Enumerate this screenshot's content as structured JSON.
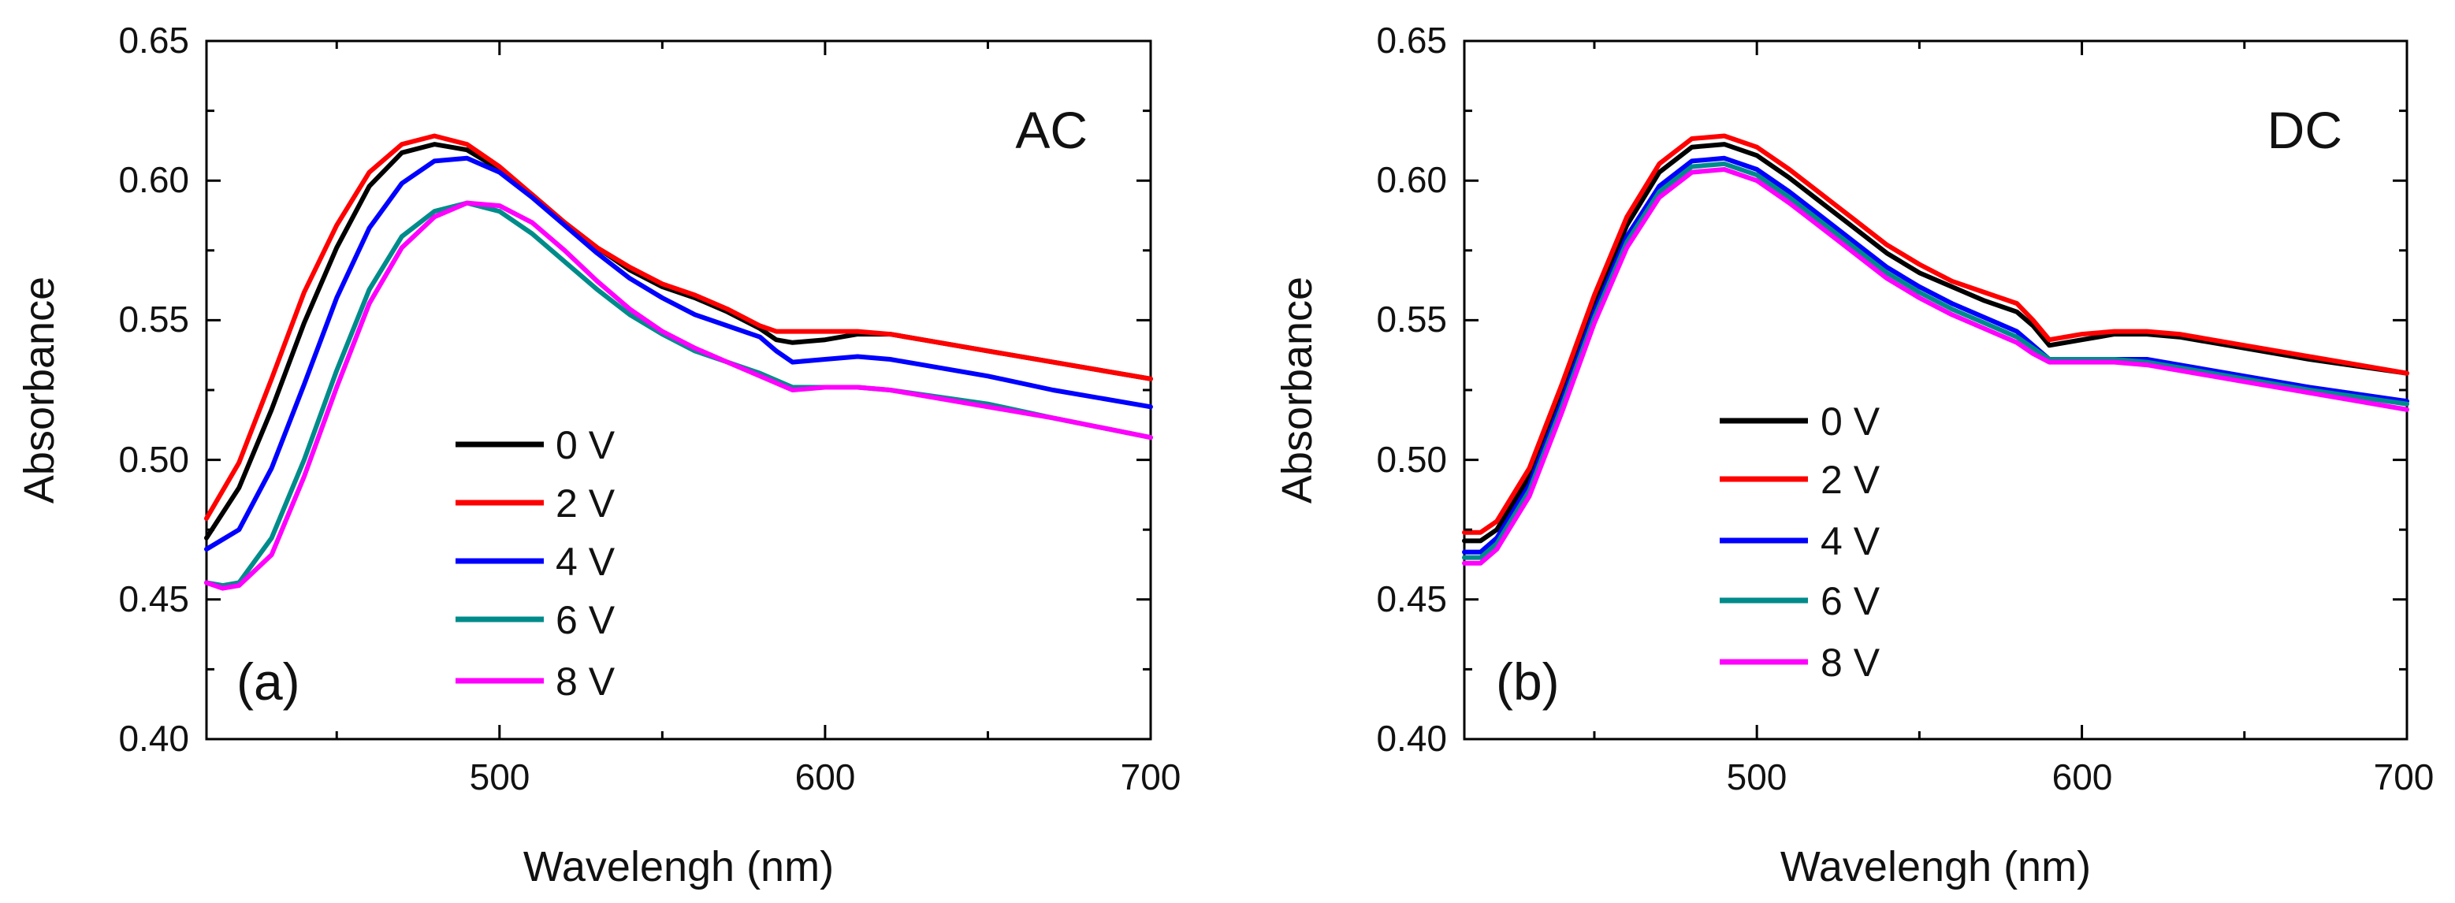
{
  "chart_data": [
    {
      "type": "line",
      "panel_label": "(a)",
      "title": "AC",
      "xlabel": "Wavelengh (nm)",
      "ylabel": "Absorbance",
      "xlim": [
        410,
        700
      ],
      "ylim": [
        0.4,
        0.65
      ],
      "xticks": [
        500,
        600,
        700
      ],
      "yticks": [
        0.4,
        0.45,
        0.5,
        0.55,
        0.6,
        0.65
      ],
      "ytick_labels": [
        "0.40",
        "0.45",
        "0.50",
        "0.55",
        "0.60",
        "0.65"
      ],
      "legend_position": "lower-center",
      "series": [
        {
          "name": "0 V",
          "color": "#000000",
          "x": [
            410,
            420,
            430,
            440,
            450,
            460,
            470,
            480,
            490,
            500,
            510,
            520,
            530,
            540,
            550,
            560,
            570,
            580,
            585,
            590,
            600,
            610,
            620,
            630,
            650,
            670,
            700
          ],
          "y": [
            0.472,
            0.49,
            0.518,
            0.549,
            0.576,
            0.598,
            0.61,
            0.613,
            0.611,
            0.604,
            0.595,
            0.585,
            0.576,
            0.568,
            0.562,
            0.558,
            0.553,
            0.547,
            0.543,
            0.542,
            0.543,
            0.545,
            0.545,
            0.543,
            0.539,
            0.535,
            0.529
          ]
        },
        {
          "name": "2 V",
          "color": "#ff0000",
          "x": [
            410,
            420,
            430,
            440,
            450,
            460,
            470,
            480,
            490,
            500,
            510,
            520,
            530,
            540,
            550,
            560,
            570,
            580,
            585,
            590,
            600,
            610,
            620,
            630,
            650,
            670,
            700
          ],
          "y": [
            0.479,
            0.499,
            0.529,
            0.56,
            0.584,
            0.603,
            0.613,
            0.616,
            0.613,
            0.605,
            0.595,
            0.585,
            0.576,
            0.569,
            0.563,
            0.559,
            0.554,
            0.548,
            0.546,
            0.546,
            0.546,
            0.546,
            0.545,
            0.543,
            0.539,
            0.535,
            0.529
          ]
        },
        {
          "name": "4 V",
          "color": "#0000ff",
          "x": [
            410,
            420,
            430,
            440,
            450,
            460,
            470,
            480,
            490,
            500,
            510,
            520,
            530,
            540,
            550,
            560,
            570,
            580,
            585,
            590,
            600,
            610,
            620,
            630,
            650,
            670,
            700
          ],
          "y": [
            0.468,
            0.475,
            0.497,
            0.527,
            0.558,
            0.583,
            0.599,
            0.607,
            0.608,
            0.603,
            0.594,
            0.584,
            0.574,
            0.565,
            0.558,
            0.552,
            0.548,
            0.544,
            0.539,
            0.535,
            0.536,
            0.537,
            0.536,
            0.534,
            0.53,
            0.525,
            0.519
          ]
        },
        {
          "name": "6 V",
          "color": "#008b8b",
          "x": [
            410,
            415,
            420,
            430,
            440,
            450,
            460,
            470,
            480,
            490,
            500,
            510,
            520,
            530,
            540,
            550,
            560,
            570,
            580,
            590,
            600,
            610,
            620,
            650,
            670,
            700
          ],
          "y": [
            0.456,
            0.455,
            0.456,
            0.472,
            0.5,
            0.532,
            0.561,
            0.58,
            0.589,
            0.592,
            0.589,
            0.581,
            0.571,
            0.561,
            0.552,
            0.545,
            0.539,
            0.535,
            0.531,
            0.526,
            0.526,
            0.526,
            0.525,
            0.52,
            0.515,
            0.508
          ]
        },
        {
          "name": "8 V",
          "color": "#ff00ff",
          "x": [
            410,
            415,
            420,
            430,
            440,
            450,
            460,
            470,
            480,
            490,
            500,
            510,
            520,
            530,
            540,
            550,
            560,
            570,
            580,
            590,
            600,
            610,
            620,
            650,
            670,
            700
          ],
          "y": [
            0.456,
            0.454,
            0.455,
            0.466,
            0.494,
            0.526,
            0.556,
            0.576,
            0.587,
            0.592,
            0.591,
            0.585,
            0.575,
            0.564,
            0.554,
            0.546,
            0.54,
            0.535,
            0.53,
            0.525,
            0.526,
            0.526,
            0.525,
            0.519,
            0.515,
            0.508
          ]
        }
      ]
    },
    {
      "type": "line",
      "panel_label": "(b)",
      "title": "DC",
      "xlabel": "Wavelengh (nm)",
      "ylabel": "Absorbance",
      "xlim": [
        410,
        700
      ],
      "ylim": [
        0.4,
        0.65
      ],
      "xticks": [
        500,
        600,
        700
      ],
      "yticks": [
        0.4,
        0.45,
        0.5,
        0.55,
        0.6,
        0.65
      ],
      "ytick_labels": [
        "0.40",
        "0.45",
        "0.50",
        "0.55",
        "0.60",
        "0.65"
      ],
      "legend_position": "lower-center",
      "series": [
        {
          "name": "0 V",
          "color": "#000000",
          "x": [
            410,
            415,
            420,
            430,
            440,
            450,
            460,
            470,
            480,
            490,
            500,
            510,
            520,
            530,
            540,
            550,
            560,
            570,
            580,
            585,
            590,
            600,
            610,
            620,
            630,
            650,
            670,
            700
          ],
          "y": [
            0.471,
            0.471,
            0.475,
            0.494,
            0.524,
            0.556,
            0.584,
            0.603,
            0.612,
            0.613,
            0.609,
            0.601,
            0.592,
            0.583,
            0.574,
            0.567,
            0.562,
            0.557,
            0.553,
            0.548,
            0.541,
            0.543,
            0.545,
            0.545,
            0.544,
            0.54,
            0.536,
            0.531
          ]
        },
        {
          "name": "2 V",
          "color": "#ff0000",
          "x": [
            410,
            415,
            420,
            430,
            440,
            450,
            460,
            470,
            480,
            490,
            500,
            510,
            520,
            530,
            540,
            550,
            560,
            570,
            580,
            585,
            590,
            600,
            610,
            620,
            630,
            650,
            670,
            700
          ],
          "y": [
            0.474,
            0.474,
            0.478,
            0.497,
            0.527,
            0.559,
            0.587,
            0.606,
            0.615,
            0.616,
            0.612,
            0.604,
            0.595,
            0.586,
            0.577,
            0.57,
            0.564,
            0.56,
            0.556,
            0.55,
            0.543,
            0.545,
            0.546,
            0.546,
            0.545,
            0.541,
            0.537,
            0.531
          ]
        },
        {
          "name": "4 V",
          "color": "#0000ff",
          "x": [
            410,
            415,
            420,
            430,
            440,
            450,
            460,
            470,
            480,
            490,
            500,
            510,
            520,
            530,
            540,
            550,
            560,
            570,
            580,
            585,
            590,
            600,
            610,
            620,
            630,
            650,
            670,
            700
          ],
          "y": [
            0.467,
            0.467,
            0.472,
            0.491,
            0.521,
            0.553,
            0.58,
            0.598,
            0.607,
            0.608,
            0.604,
            0.596,
            0.587,
            0.578,
            0.569,
            0.562,
            0.556,
            0.551,
            0.546,
            0.541,
            0.536,
            0.536,
            0.536,
            0.536,
            0.534,
            0.53,
            0.526,
            0.521
          ]
        },
        {
          "name": "6 V",
          "color": "#008b8b",
          "x": [
            410,
            415,
            420,
            430,
            440,
            450,
            460,
            470,
            480,
            490,
            500,
            510,
            520,
            530,
            540,
            550,
            560,
            570,
            580,
            585,
            590,
            600,
            610,
            620,
            630,
            650,
            670,
            700
          ],
          "y": [
            0.465,
            0.465,
            0.47,
            0.489,
            0.519,
            0.551,
            0.578,
            0.596,
            0.605,
            0.606,
            0.602,
            0.594,
            0.585,
            0.576,
            0.567,
            0.56,
            0.554,
            0.549,
            0.544,
            0.54,
            0.536,
            0.536,
            0.536,
            0.535,
            0.533,
            0.529,
            0.525,
            0.52
          ]
        },
        {
          "name": "8 V",
          "color": "#ff00ff",
          "x": [
            410,
            415,
            420,
            430,
            440,
            450,
            460,
            470,
            480,
            490,
            500,
            510,
            520,
            530,
            540,
            550,
            560,
            570,
            580,
            585,
            590,
            600,
            610,
            620,
            630,
            650,
            670,
            700
          ],
          "y": [
            0.463,
            0.463,
            0.468,
            0.487,
            0.517,
            0.549,
            0.576,
            0.594,
            0.603,
            0.604,
            0.6,
            0.592,
            0.583,
            0.574,
            0.565,
            0.558,
            0.552,
            0.547,
            0.542,
            0.538,
            0.535,
            0.535,
            0.535,
            0.534,
            0.532,
            0.528,
            0.524,
            0.518
          ]
        }
      ]
    }
  ]
}
